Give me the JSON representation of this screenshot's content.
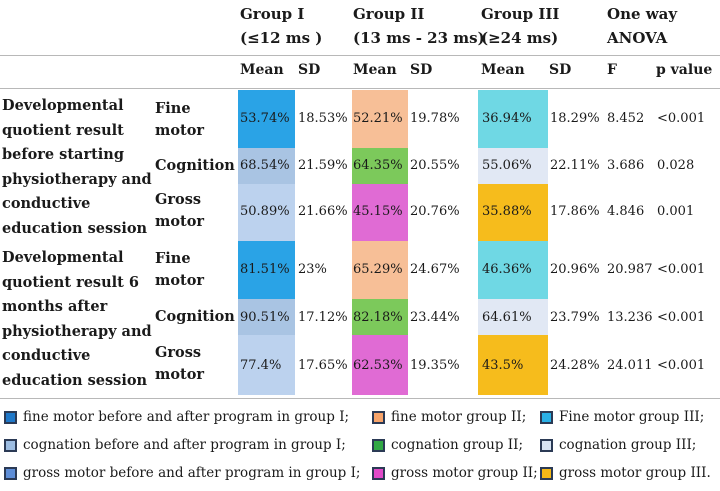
{
  "header": {
    "group1": "Group I",
    "group1_range": "(≤12 ms )",
    "group2": "Group II",
    "group2_range": "(13 ms - 23 ms)",
    "group3": "Group III",
    "group3_range": "(≥24 ms)",
    "anova": "One way",
    "anova2": "ANOVA"
  },
  "subheader": {
    "mean1": "Mean",
    "sd1": "SD",
    "mean2": "Mean",
    "sd2": "SD",
    "mean3": "Mean",
    "sd3": "SD",
    "f": "F",
    "p": "p value"
  },
  "sections": [
    {
      "label_lines": [
        "Developmental",
        "quotient result",
        "before starting",
        "physiotherapy and",
        "conductive",
        "education session"
      ],
      "rows": [
        {
          "measure_lines": [
            "Fine",
            "motor"
          ],
          "m1": "53.74%",
          "sd1": "18.53%",
          "m2": "52.21%",
          "sd2": "19.78%",
          "m3": "36.94%",
          "sd3": "18.29%",
          "f": "8.452",
          "p": "<0.001"
        },
        {
          "measure_lines": [
            "Cognition"
          ],
          "m1": "68.54%",
          "sd1": "21.59%",
          "m2": "64.35%",
          "sd2": "20.55%",
          "m3": "55.06%",
          "sd3": "22.11%",
          "f": "3.686",
          "p": "0.028"
        },
        {
          "measure_lines": [
            "Gross",
            "motor"
          ],
          "m1": "50.89%",
          "sd1": "21.66%",
          "m2": "45.15%",
          "sd2": "20.76%",
          "m3": "35.88%",
          "sd3": "17.86%",
          "f": "4.846",
          "p": "0.001"
        }
      ]
    },
    {
      "label_lines": [
        "Developmental",
        "quotient result 6",
        "months after",
        "physiotherapy and",
        "conductive",
        "education session"
      ],
      "rows": [
        {
          "measure_lines": [
            "Fine",
            "motor"
          ],
          "m1": "81.51%",
          "sd1": "23%",
          "m2": "65.29%",
          "sd2": "24.67%",
          "m3": "46.36%",
          "sd3": "20.96%",
          "f": "20.987",
          "p": "<0.001"
        },
        {
          "measure_lines": [
            "Cognition"
          ],
          "m1": "90.51%",
          "sd1": "17.12%",
          "m2": "82.18%",
          "sd2": "23.44%",
          "m3": "64.61%",
          "sd3": "23.79%",
          "f": "13.236",
          "p": "<0.001"
        },
        {
          "measure_lines": [
            "Gross",
            "motor"
          ],
          "m1": "77.4%",
          "sd1": "17.65%",
          "m2": "62.53%",
          "sd2": "19.35%",
          "m3": "43.5%",
          "sd3": "24.28%",
          "f": "24.011",
          "p": "<0.001"
        }
      ]
    }
  ],
  "colors": {
    "g1_fine": "#2aa3e6",
    "g1_cognition": "#a9c4e3",
    "g1_gross": "#bcd2ee",
    "g2_fine": "#f7bf97",
    "g2_cognition": "#7cc95b",
    "g2_gross": "#e06bd4",
    "g3_fine": "#6fd8e4",
    "g3_cognition": "#e1e8f4",
    "g3_gross": "#f6bc1c"
  },
  "legend": [
    [
      {
        "text": "fine motor before and after program in group I;",
        "color": "#1f78c9"
      },
      {
        "text": "fine motor group II;",
        "color": "#f6a46b"
      },
      {
        "text": "Fine motor group III;",
        "color": "#2ab0e6"
      }
    ],
    [
      {
        "text": "cognation before and after program in group I;",
        "color": "#9dbde2"
      },
      {
        "text": "cognation group II;",
        "color": "#31a845"
      },
      {
        "text": "cognation group III;",
        "color": "#d7e3f3"
      }
    ],
    [
      {
        "text": "gross motor before and after program in group I;",
        "color": "#5e8ed8"
      },
      {
        "text": "gross motor group II;",
        "color": "#e049c8"
      },
      {
        "text": "gross motor group III.",
        "color": "#f4b817"
      }
    ]
  ]
}
